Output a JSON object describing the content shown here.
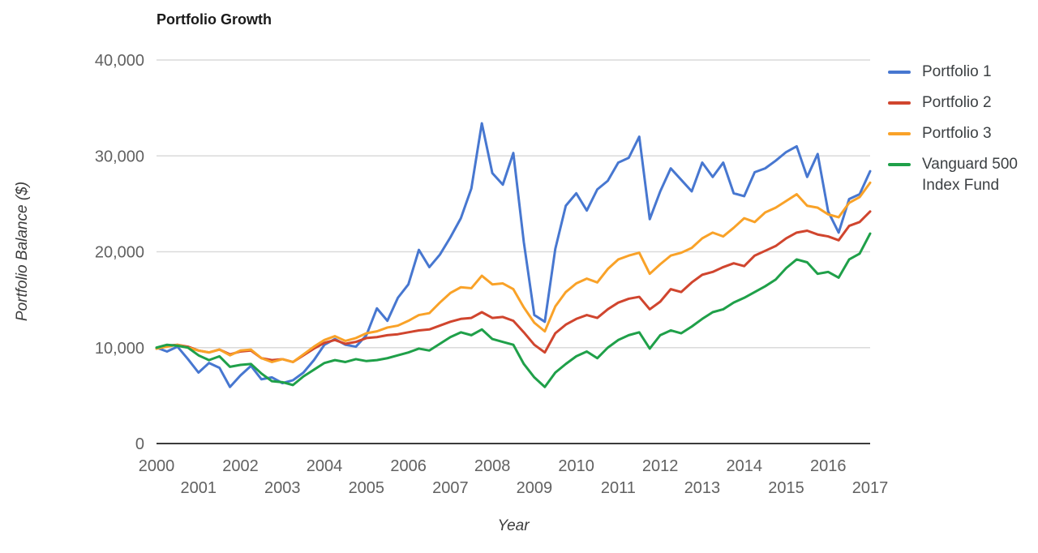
{
  "title": "Portfolio Growth",
  "axes": {
    "y": {
      "title": "Portfolio Balance ($)",
      "tick_labels": [
        "0",
        "10,000",
        "20,000",
        "30,000",
        "40,000"
      ],
      "tick_values": [
        0,
        10000,
        20000,
        30000,
        40000
      ]
    },
    "x": {
      "title": "Year",
      "ticks": [
        2000,
        2001,
        2002,
        2003,
        2004,
        2005,
        2006,
        2007,
        2008,
        2009,
        2010,
        2011,
        2012,
        2013,
        2014,
        2015,
        2016,
        2017
      ]
    }
  },
  "legend": {
    "position": "right",
    "items": [
      "Portfolio 1",
      "Portfolio 2",
      "Portfolio 3",
      "Vanguard 500 Index Fund"
    ]
  },
  "chart_data": {
    "type": "line",
    "title": "Portfolio Growth",
    "xlabel": "Year",
    "ylabel": "Portfolio Balance ($)",
    "x_start": 2000,
    "x_step": 0.25,
    "x_end": 2017,
    "xlim": [
      2000,
      2017
    ],
    "ylim": [
      0,
      40000
    ],
    "grid": "horizontal-only",
    "legend_position": "right",
    "series": [
      {
        "name": "Portfolio 1",
        "color": "#4777D0",
        "values": [
          10000,
          9600,
          10100,
          8800,
          7400,
          8400,
          7900,
          5900,
          7100,
          8100,
          6700,
          6900,
          6300,
          6600,
          7400,
          8700,
          10300,
          10900,
          10300,
          10100,
          11300,
          14100,
          12800,
          15200,
          16600,
          20200,
          18400,
          19700,
          21500,
          23500,
          26600,
          33400,
          28200,
          27000,
          30300,
          21000,
          13400,
          12700,
          20300,
          24800,
          26100,
          24300,
          26500,
          27400,
          29300,
          29800,
          32000,
          23400,
          26300,
          28700,
          27500,
          26300,
          29300,
          27800,
          29300,
          26100,
          25800,
          28300,
          28700,
          29500,
          30400,
          31000,
          27800,
          30200,
          24200,
          22000,
          25500,
          26000,
          28400
        ]
      },
      {
        "name": "Portfolio 2",
        "color": "#D0452E",
        "values": [
          9900,
          10200,
          10300,
          10100,
          9700,
          9500,
          9800,
          9300,
          9600,
          9700,
          8900,
          8700,
          8800,
          8500,
          9200,
          9900,
          10500,
          10800,
          10400,
          10600,
          11000,
          11100,
          11300,
          11400,
          11600,
          11800,
          11900,
          12300,
          12700,
          13000,
          13100,
          13700,
          13100,
          13200,
          12800,
          11600,
          10300,
          9500,
          11500,
          12400,
          13000,
          13400,
          13100,
          14000,
          14700,
          15100,
          15300,
          14000,
          14800,
          16100,
          15800,
          16800,
          17600,
          17900,
          18400,
          18800,
          18500,
          19600,
          20100,
          20600,
          21400,
          22000,
          22200,
          21800,
          21600,
          21200,
          22700,
          23100,
          24200
        ]
      },
      {
        "name": "Portfolio 3",
        "color": "#F9A228",
        "values": [
          9900,
          10100,
          10300,
          10000,
          9700,
          9500,
          9800,
          9200,
          9700,
          9800,
          8900,
          8500,
          8800,
          8500,
          9300,
          10100,
          10800,
          11200,
          10700,
          11000,
          11500,
          11700,
          12100,
          12300,
          12800,
          13400,
          13600,
          14700,
          15700,
          16300,
          16200,
          17500,
          16600,
          16700,
          16100,
          14200,
          12600,
          11700,
          14300,
          15800,
          16700,
          17200,
          16800,
          18200,
          19200,
          19600,
          19900,
          17700,
          18700,
          19600,
          19900,
          20400,
          21400,
          22000,
          21600,
          22500,
          23500,
          23100,
          24100,
          24600,
          25300,
          26000,
          24800,
          24600,
          23900,
          23600,
          25100,
          25700,
          27200
        ]
      },
      {
        "name": "Vanguard 500 Index Fund",
        "color": "#1FA049",
        "values": [
          10000,
          10300,
          10200,
          10000,
          9200,
          8700,
          9100,
          8000,
          8200,
          8300,
          7300,
          6500,
          6400,
          6100,
          7000,
          7700,
          8400,
          8700,
          8500,
          8800,
          8600,
          8700,
          8900,
          9200,
          9500,
          9900,
          9700,
          10400,
          11100,
          11600,
          11300,
          11900,
          10900,
          10600,
          10300,
          8300,
          6900,
          5900,
          7400,
          8300,
          9100,
          9600,
          8900,
          10000,
          10800,
          11300,
          11600,
          9900,
          11300,
          11800,
          11500,
          12200,
          13000,
          13700,
          14000,
          14700,
          15200,
          15800,
          16400,
          17100,
          18300,
          19200,
          18900,
          17700,
          17900,
          17300,
          19200,
          19800,
          21900
        ]
      }
    ]
  }
}
